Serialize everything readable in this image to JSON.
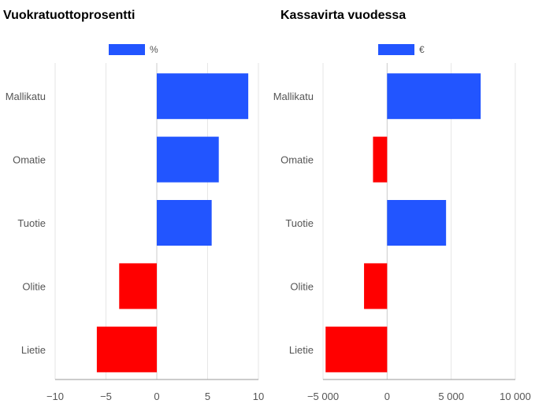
{
  "chart_data": [
    {
      "type": "bar",
      "orientation": "horizontal",
      "title": "Vuokratuottoprosentti",
      "categories": [
        "Mallikatu",
        "Omatie",
        "Tuotie",
        "Olitie",
        "Lietie"
      ],
      "series": [
        {
          "name": "%",
          "values": [
            9.0,
            6.1,
            5.4,
            -3.7,
            -5.9
          ]
        }
      ],
      "xlim": [
        -10,
        10
      ],
      "xticks": [
        -10,
        -5,
        0,
        5,
        10
      ],
      "xtick_labels": [
        "−10",
        "−5",
        "0",
        "5",
        "10"
      ],
      "grid": true,
      "legend": "top",
      "colors": {
        "positive": "#2255ff",
        "negative": "#ff0000"
      }
    },
    {
      "type": "bar",
      "orientation": "horizontal",
      "title": "Kassavirta vuodessa",
      "categories": [
        "Mallikatu",
        "Omatie",
        "Tuotie",
        "Olitie",
        "Lietie"
      ],
      "series": [
        {
          "name": "€",
          "values": [
            7300,
            -1100,
            4600,
            -1800,
            -4800
          ]
        }
      ],
      "xlim": [
        -5000,
        10000
      ],
      "xticks": [
        -5000,
        0,
        5000,
        10000
      ],
      "xtick_labels": [
        "−5 000",
        "0",
        "5 000",
        "10 000"
      ],
      "grid": true,
      "legend": "top",
      "colors": {
        "positive": "#2255ff",
        "negative": "#ff0000"
      }
    }
  ]
}
